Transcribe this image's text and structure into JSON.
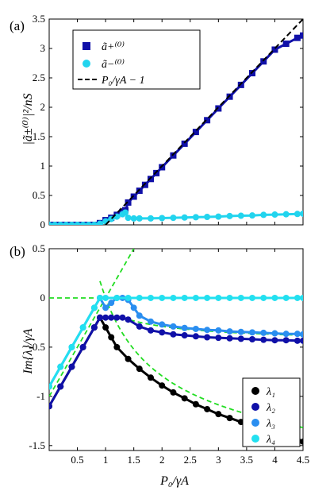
{
  "chart_data": [
    {
      "type": "scatter",
      "panel_label": "(a)",
      "xlabel": "",
      "ylabel": "|ã±⁽⁰⁾|²/nS",
      "xlim": [
        0,
        4.5
      ],
      "ylim": [
        0,
        3.5
      ],
      "yticks": [
        0,
        0.5,
        1,
        1.5,
        2,
        2.5,
        3,
        3.5
      ],
      "yticklabels": [
        "0",
        "0.5",
        "1",
        "1.5",
        "2",
        "2.5",
        "3",
        "3.5"
      ],
      "legend_position": "top-left",
      "series": [
        {
          "name": "ã+⁽⁰⁾",
          "marker": "square",
          "color": "#1010a8",
          "x": [
            0,
            0.1,
            0.2,
            0.3,
            0.4,
            0.5,
            0.6,
            0.7,
            0.8,
            0.9,
            1.0,
            1.1,
            1.2,
            1.3,
            1.35,
            1.4,
            1.5,
            1.6,
            1.7,
            1.8,
            1.9,
            2.0,
            2.2,
            2.4,
            2.6,
            2.8,
            3.0,
            3.2,
            3.4,
            3.6,
            3.8,
            4.0,
            4.2,
            4.4,
            4.5
          ],
          "y": [
            0,
            0,
            0,
            0,
            0,
            0,
            0,
            0,
            0,
            0.03,
            0.08,
            0.12,
            0.17,
            0.22,
            0.25,
            0.38,
            0.48,
            0.58,
            0.68,
            0.78,
            0.88,
            0.98,
            1.18,
            1.38,
            1.58,
            1.78,
            1.98,
            2.18,
            2.38,
            2.58,
            2.78,
            2.98,
            3.08,
            3.18,
            3.22
          ]
        },
        {
          "name": "ã−⁽⁰⁾",
          "marker": "circle",
          "color": "#22d4ee",
          "x": [
            0,
            0.1,
            0.2,
            0.3,
            0.4,
            0.5,
            0.6,
            0.7,
            0.8,
            0.9,
            1.0,
            1.1,
            1.2,
            1.3,
            1.35,
            1.4,
            1.5,
            1.6,
            1.8,
            2.0,
            2.2,
            2.4,
            2.6,
            2.8,
            3.0,
            3.2,
            3.4,
            3.6,
            3.8,
            4.0,
            4.2,
            4.4,
            4.5
          ],
          "y": [
            0,
            0,
            0,
            0,
            0,
            0,
            0,
            0,
            0,
            0.02,
            0.06,
            0.1,
            0.14,
            0.18,
            0.21,
            0.12,
            0.11,
            0.11,
            0.11,
            0.115,
            0.12,
            0.125,
            0.13,
            0.135,
            0.14,
            0.15,
            0.155,
            0.16,
            0.17,
            0.175,
            0.18,
            0.185,
            0.19
          ]
        },
        {
          "name": "P₀/γA − 1",
          "marker": "none",
          "line": "dashed",
          "color": "#000000",
          "x": [
            1,
            4.5
          ],
          "y": [
            0,
            3.5
          ]
        }
      ]
    },
    {
      "type": "scatter",
      "panel_label": "(b)",
      "xlabel": "P₀/γA",
      "ylabel": "Im{λ}/γA",
      "xlim": [
        0,
        4.5
      ],
      "ylim": [
        -1.55,
        0.5
      ],
      "xticks": [
        0.5,
        1,
        1.5,
        2,
        2.5,
        3,
        3.5,
        4,
        4.5
      ],
      "xticklabels": [
        "0.5",
        "1",
        "1.5",
        "2",
        "2.5",
        "3",
        "3.5",
        "4",
        "4.5"
      ],
      "yticks": [
        0.5,
        0,
        -0.5,
        -1,
        -1.5
      ],
      "yticklabels": [
        "0.5",
        "0",
        "-0.5",
        "-1",
        "-1.5"
      ],
      "legend_position": "bottom-right",
      "series": [
        {
          "name": "λ₁",
          "color": "#000000",
          "x": [
            0,
            0.2,
            0.4,
            0.6,
            0.8,
            0.9,
            1.0,
            1.1,
            1.2,
            1.4,
            1.6,
            1.8,
            2.0,
            2.2,
            2.4,
            2.6,
            2.8,
            3.0,
            3.2,
            3.4,
            3.6,
            3.8,
            4.0,
            4.2,
            4.4,
            4.5
          ],
          "y": [
            -1.1,
            -0.9,
            -0.7,
            -0.5,
            -0.3,
            -0.2,
            -0.3,
            -0.4,
            -0.5,
            -0.62,
            -0.72,
            -0.81,
            -0.89,
            -0.96,
            -1.02,
            -1.08,
            -1.13,
            -1.18,
            -1.22,
            -1.26,
            -1.3,
            -1.34,
            -1.37,
            -1.41,
            -1.44,
            -1.46
          ]
        },
        {
          "name": "λ₂",
          "color": "#1010a8",
          "x": [
            0,
            0.2,
            0.4,
            0.6,
            0.8,
            0.9,
            1.0,
            1.1,
            1.2,
            1.3,
            1.4,
            1.6,
            1.8,
            2.0,
            2.2,
            2.4,
            2.6,
            2.8,
            3.0,
            3.2,
            3.4,
            3.6,
            3.8,
            4.0,
            4.2,
            4.4,
            4.5
          ],
          "y": [
            -1.1,
            -0.9,
            -0.7,
            -0.5,
            -0.3,
            -0.2,
            -0.2,
            -0.2,
            -0.2,
            -0.2,
            -0.22,
            -0.29,
            -0.33,
            -0.35,
            -0.37,
            -0.38,
            -0.39,
            -0.4,
            -0.405,
            -0.41,
            -0.415,
            -0.42,
            -0.425,
            -0.43,
            -0.43,
            -0.435,
            -0.435
          ]
        },
        {
          "name": "λ₃",
          "color": "#2a8ef0",
          "x": [
            0,
            0.2,
            0.4,
            0.6,
            0.8,
            0.9,
            1.0,
            1.1,
            1.2,
            1.3,
            1.4,
            1.5,
            1.6,
            1.8,
            2.0,
            2.2,
            2.4,
            2.6,
            2.8,
            3.0,
            3.2,
            3.4,
            3.6,
            3.8,
            4.0,
            4.2,
            4.4,
            4.5
          ],
          "y": [
            -0.9,
            -0.7,
            -0.5,
            -0.3,
            -0.1,
            0,
            -0.1,
            -0.05,
            0,
            0,
            -0.02,
            -0.1,
            -0.18,
            -0.24,
            -0.27,
            -0.29,
            -0.305,
            -0.315,
            -0.325,
            -0.33,
            -0.34,
            -0.345,
            -0.35,
            -0.355,
            -0.36,
            -0.365,
            -0.365,
            -0.37
          ]
        },
        {
          "name": "λ₄",
          "color": "#22e0f0",
          "x": [
            0,
            0.2,
            0.4,
            0.6,
            0.8,
            0.9,
            1.0,
            1.2,
            1.4,
            1.6,
            1.8,
            2.0,
            2.2,
            2.4,
            2.6,
            2.8,
            3.0,
            3.2,
            3.4,
            3.6,
            3.8,
            4.0,
            4.2,
            4.4,
            4.5
          ],
          "y": [
            -0.9,
            -0.7,
            -0.5,
            -0.3,
            -0.1,
            0,
            0,
            0,
            0,
            0,
            0,
            0,
            0,
            0,
            0,
            0,
            0,
            0,
            0,
            0,
            0,
            0,
            0,
            0,
            0
          ]
        }
      ]
    }
  ]
}
